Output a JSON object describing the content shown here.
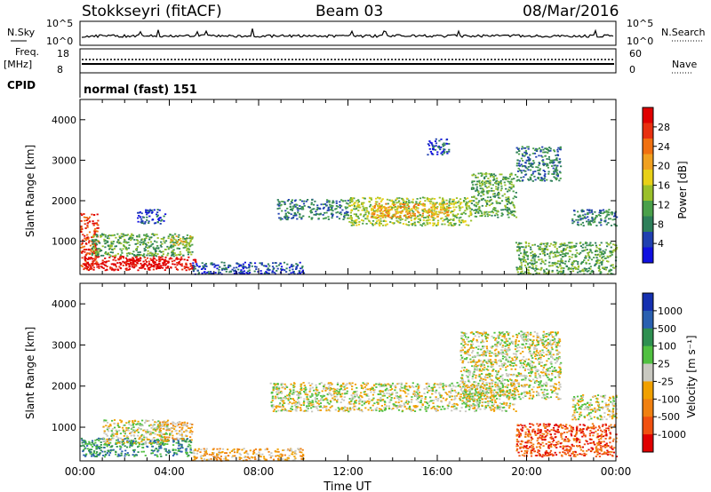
{
  "header": {
    "site": "Stokkseyri (fitACF)",
    "beam": "Beam 03",
    "date": "08/Mar/2016"
  },
  "status": {
    "nsky_label": "N.Sky",
    "nsky_top": "10^5",
    "nsky_bottom": "10^0",
    "nsearch_label": "N.Search",
    "nsearch_top": "10^5",
    "nsearch_bottom": "10^0",
    "freq_label": "Freq.",
    "freq_unit": "[MHz]",
    "freq_top": "18",
    "freq_bottom": "8",
    "nave_label": "Nave",
    "nave_top": "60",
    "nave_bottom": "0",
    "cpid_label": "CPID",
    "cpid_value": "normal (fast) 151"
  },
  "chart_data": [
    {
      "type": "heatmap",
      "name": "power",
      "ylabel": "Slant Range [km]",
      "ylim": [
        180,
        4500
      ],
      "yticks": [
        "1000",
        "2000",
        "3000",
        "4000"
      ],
      "xlim": [
        0,
        24
      ],
      "colorbar": {
        "label": "Power [dB]",
        "ticks": [
          "4",
          "8",
          "12",
          "16",
          "20",
          "24",
          "28"
        ],
        "colors": [
          "#1010e0",
          "#2040b0",
          "#2e7f5a",
          "#4aa04a",
          "#9ac02a",
          "#e8d018",
          "#f0a020",
          "#f07010",
          "#e83010",
          "#e00000"
        ]
      },
      "regions": [
        {
          "t0": 0.0,
          "t1": 0.8,
          "r0": 300,
          "r1": 1700,
          "level": 8
        },
        {
          "t0": 0.1,
          "t1": 5.2,
          "r0": 300,
          "r1": 650,
          "level": 9
        },
        {
          "t0": 2.0,
          "t1": 4.0,
          "r0": 350,
          "r1": 600,
          "level": 10
        },
        {
          "t0": 0.5,
          "t1": 5.0,
          "r0": 650,
          "r1": 1200,
          "level": 3
        },
        {
          "t0": 4.0,
          "t1": 5.0,
          "r0": 900,
          "r1": 1150,
          "level": 5
        },
        {
          "t0": 2.5,
          "t1": 3.8,
          "r0": 1450,
          "r1": 1800,
          "level": 1
        },
        {
          "t0": 5.0,
          "t1": 10.0,
          "r0": 200,
          "r1": 500,
          "level": 1
        },
        {
          "t0": 8.8,
          "t1": 12.0,
          "r0": 1550,
          "r1": 2050,
          "level": 2
        },
        {
          "t0": 12.0,
          "t1": 17.5,
          "r0": 1400,
          "r1": 2100,
          "level": 4
        },
        {
          "t0": 13.0,
          "t1": 16.5,
          "r0": 1600,
          "r1": 1950,
          "level": 6
        },
        {
          "t0": 17.5,
          "t1": 19.5,
          "r0": 1600,
          "r1": 2700,
          "level": 3
        },
        {
          "t0": 19.5,
          "t1": 21.5,
          "r0": 2500,
          "r1": 3350,
          "level": 2
        },
        {
          "t0": 19.5,
          "t1": 24.0,
          "r0": 200,
          "r1": 1000,
          "level": 3
        },
        {
          "t0": 22.0,
          "t1": 24.0,
          "r0": 1400,
          "r1": 1800,
          "level": 2
        },
        {
          "t0": 15.5,
          "t1": 16.5,
          "r0": 3150,
          "r1": 3550,
          "level": 1
        }
      ]
    },
    {
      "type": "heatmap",
      "name": "velocity",
      "ylabel": "Slant Range [km]",
      "ylim": [
        180,
        4500
      ],
      "yticks": [
        "1000",
        "2000",
        "3000",
        "4000"
      ],
      "xlim": [
        0,
        24
      ],
      "xticks": [
        "00:00",
        "04:00",
        "08:00",
        "12:00",
        "16:00",
        "20:00",
        "00:00"
      ],
      "xlabel": "Time UT",
      "colorbar": {
        "label": "Velocity [m s⁻¹]",
        "ticks": [
          "1000",
          "500",
          "100",
          "25",
          "-25",
          "-100",
          "-500",
          "-1000"
        ],
        "colors": [
          "#1530b0",
          "#2a60b0",
          "#2e8f50",
          "#50c040",
          "#c8c8c0",
          "#f0a000",
          "#f08010",
          "#f05010",
          "#e00000"
        ]
      },
      "regions": [
        {
          "t0": 0.0,
          "t1": 5.0,
          "r0": 300,
          "r1": 750,
          "level": 2
        },
        {
          "t0": 1.0,
          "t1": 4.0,
          "r0": 600,
          "r1": 1200,
          "level": 4
        },
        {
          "t0": 3.5,
          "t1": 5.0,
          "r0": 700,
          "r1": 1150,
          "level": 5
        },
        {
          "t0": 5.0,
          "t1": 10.0,
          "r0": 200,
          "r1": 500,
          "level": 5
        },
        {
          "t0": 8.5,
          "t1": 19.5,
          "r0": 1400,
          "r1": 2100,
          "level": 4
        },
        {
          "t0": 17.0,
          "t1": 21.5,
          "r0": 1700,
          "r1": 3350,
          "level": 4
        },
        {
          "t0": 19.5,
          "t1": 24.0,
          "r0": 300,
          "r1": 1100,
          "level": 7
        },
        {
          "t0": 22.0,
          "t1": 24.0,
          "r0": 1200,
          "r1": 1800,
          "level": 4
        }
      ]
    }
  ]
}
